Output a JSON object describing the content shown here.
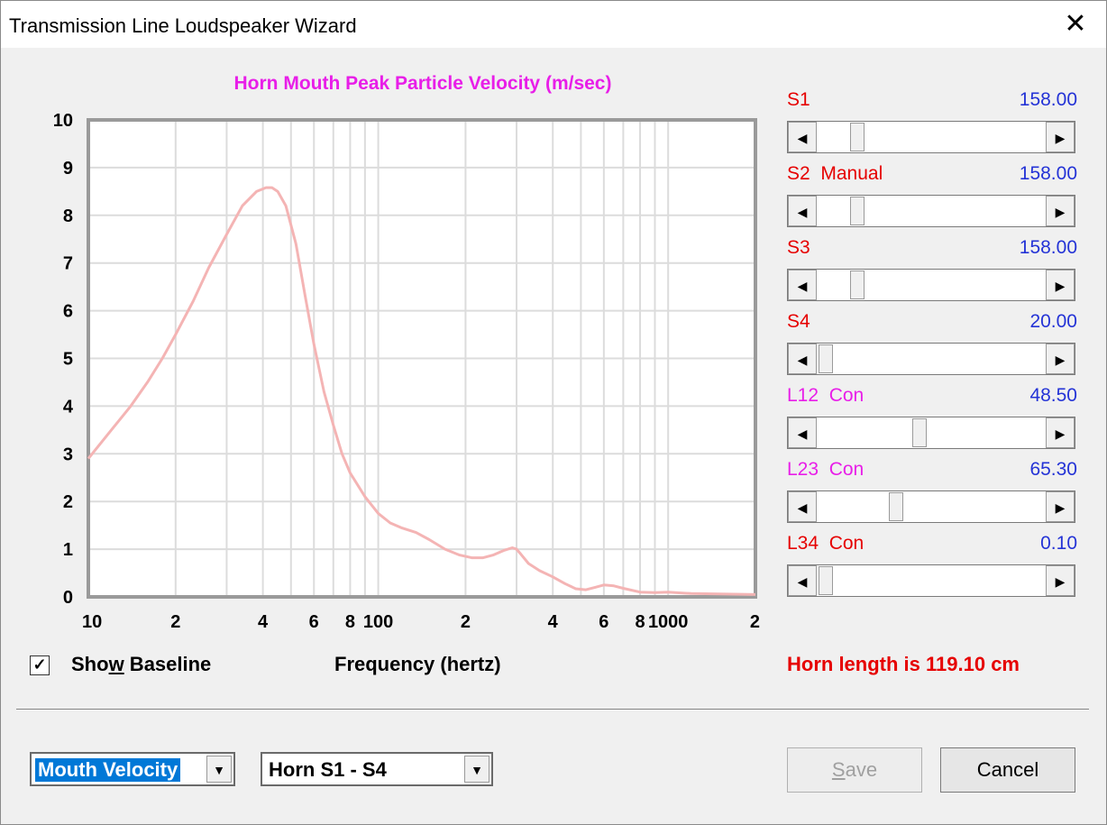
{
  "window": {
    "title": "Transmission Line Loudspeaker Wizard"
  },
  "chart_data": {
    "type": "line",
    "title": "Horn Mouth Peak Particle Velocity (m/sec)",
    "xlabel": "Frequency (hertz)",
    "ylabel": "",
    "xscale": "log",
    "xlim": [
      10,
      2000
    ],
    "ylim": [
      0,
      10
    ],
    "grid": true,
    "line_color": "#f4b4b4",
    "title_color": "#e81ee8",
    "y_ticks": [
      "0",
      "1",
      "2",
      "3",
      "4",
      "5",
      "6",
      "7",
      "8",
      "9",
      "10"
    ],
    "x_ticks": [
      {
        "value": 10,
        "label": "10"
      },
      {
        "value": 20,
        "label": "2"
      },
      {
        "value": 40,
        "label": "4"
      },
      {
        "value": 60,
        "label": "6"
      },
      {
        "value": 80,
        "label": "8"
      },
      {
        "value": 100,
        "label": "100"
      },
      {
        "value": 200,
        "label": "2"
      },
      {
        "value": 400,
        "label": "4"
      },
      {
        "value": 600,
        "label": "6"
      },
      {
        "value": 800,
        "label": "8"
      },
      {
        "value": 1000,
        "label": "1000"
      },
      {
        "value": 2000,
        "label": "2"
      }
    ],
    "series": [
      {
        "x": [
          10,
          12,
          14,
          16,
          18,
          20,
          23,
          26,
          30,
          34,
          38,
          41,
          43,
          45,
          48,
          52,
          56,
          60,
          65,
          70,
          75,
          80,
          90,
          100,
          110,
          120,
          135,
          150,
          170,
          190,
          210,
          230,
          250,
          270,
          290,
          300,
          310,
          330,
          360,
          400,
          440,
          480,
          520,
          560,
          600,
          650,
          700,
          800,
          900,
          1000,
          1200,
          1500,
          2000
        ],
        "y": [
          2.9,
          3.5,
          4.0,
          4.5,
          5.0,
          5.5,
          6.2,
          6.9,
          7.6,
          8.2,
          8.5,
          8.58,
          8.58,
          8.5,
          8.2,
          7.4,
          6.3,
          5.3,
          4.3,
          3.6,
          3.0,
          2.6,
          2.1,
          1.75,
          1.55,
          1.45,
          1.35,
          1.2,
          1.0,
          0.88,
          0.82,
          0.82,
          0.88,
          0.97,
          1.03,
          1.0,
          0.9,
          0.7,
          0.55,
          0.42,
          0.28,
          0.17,
          0.15,
          0.2,
          0.25,
          0.23,
          0.18,
          0.1,
          0.09,
          0.1,
          0.07,
          0.06,
          0.05
        ]
      }
    ]
  },
  "sliders": [
    {
      "label": "S1",
      "value": "158.00",
      "color": "#e60000",
      "position": 0.15
    },
    {
      "label": "S2  Manual",
      "value": "158.00",
      "color": "#e60000",
      "position": 0.15
    },
    {
      "label": "S3",
      "value": "158.00",
      "color": "#e60000",
      "position": 0.15
    },
    {
      "label": "S4",
      "value": "20.00",
      "color": "#e60000",
      "position": 0.0
    },
    {
      "label": "L12  Con",
      "value": "48.50",
      "color": "#e81ee8",
      "position": 0.44
    },
    {
      "label": "L23  Con",
      "value": "65.30",
      "color": "#e81ee8",
      "position": 0.33
    },
    {
      "label": "L34  Con",
      "value": "0.10",
      "color": "#e60000",
      "position": 0.0
    }
  ],
  "options": {
    "show_baseline_checked": true,
    "show_baseline_pre": "Sho",
    "show_baseline_accel": "w",
    "show_baseline_post": " Baseline"
  },
  "status": {
    "horn_length": "Horn length is 119.10 cm"
  },
  "dropdowns": {
    "mode": "Mouth Velocity",
    "horn": "Horn S1 - S4"
  },
  "buttons": {
    "save_accel": "S",
    "save_rest": "ave",
    "cancel": "Cancel"
  },
  "icons": {
    "close": "close-icon",
    "arrow_left": "arrow-left-icon",
    "arrow_right": "arrow-right-icon",
    "dropdown": "chevron-down-icon",
    "check": "checkmark-icon"
  }
}
